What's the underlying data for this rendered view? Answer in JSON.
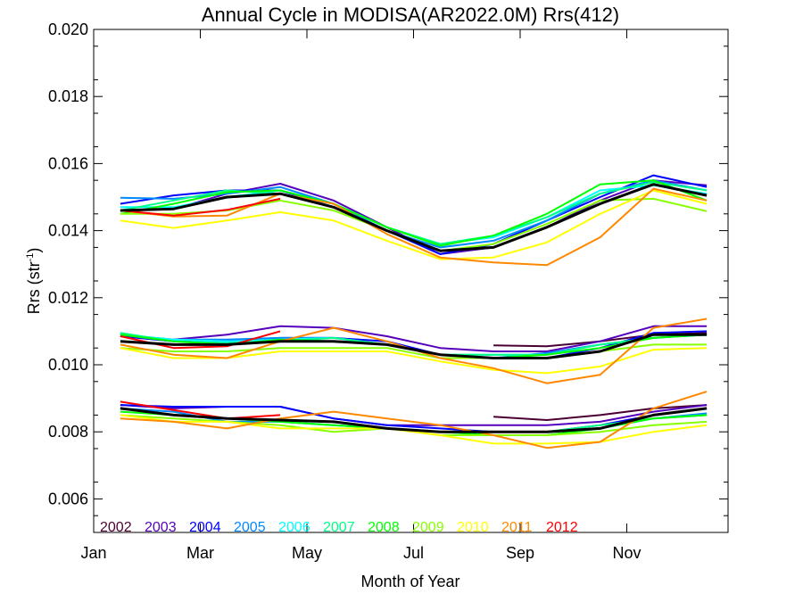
{
  "chart_data": {
    "type": "line",
    "title": "Annual Cycle in MODISA(AR2022.0M) Rrs(412)",
    "xlabel": "Month of Year",
    "ylabel_main": "Rrs (str",
    "ylabel_sup": "-1",
    "ylabel_close": ")",
    "xlim": [
      1,
      12.9
    ],
    "ylim": [
      0.005,
      0.02
    ],
    "x_ticks": [
      {
        "label": "Jan",
        "value": 1
      },
      {
        "label": "Mar",
        "value": 3
      },
      {
        "label": "May",
        "value": 5
      },
      {
        "label": "Jul",
        "value": 7
      },
      {
        "label": "Sep",
        "value": 9
      },
      {
        "label": "Nov",
        "value": 11
      }
    ],
    "y_ticks": [
      {
        "label": "0.006",
        "value": 0.006
      },
      {
        "label": "0.008",
        "value": 0.008
      },
      {
        "label": "0.010",
        "value": 0.01
      },
      {
        "label": "0.012",
        "value": 0.012
      },
      {
        "label": "0.014",
        "value": 0.014
      },
      {
        "label": "0.016",
        "value": 0.016
      },
      {
        "label": "0.018",
        "value": 0.018
      },
      {
        "label": "0.020",
        "value": 0.02
      }
    ],
    "legend_position": "bottom-left",
    "x": [
      1.5,
      2.5,
      3.5,
      4.5,
      5.5,
      6.5,
      7.5,
      8.5,
      9.5,
      10.5,
      11.5,
      12.5
    ],
    "series": [
      {
        "name": "2002",
        "color": "#4b0033",
        "legend": true,
        "groups": [
          [
            null,
            null,
            null,
            null,
            null,
            null,
            null,
            null,
            null,
            null,
            null,
            null
          ],
          [
            null,
            null,
            null,
            null,
            null,
            null,
            null,
            0.01058,
            0.01055,
            0.0107,
            0.0109,
            0.01095
          ],
          [
            null,
            null,
            null,
            null,
            null,
            null,
            null,
            0.00845,
            0.00835,
            0.0085,
            0.0087,
            0.0088
          ]
        ]
      },
      {
        "name": "2003",
        "color": "#5500bb",
        "legend": true,
        "groups": [
          [
            0.0146,
            0.01465,
            0.0151,
            0.0154,
            0.0149,
            0.0141,
            0.0133,
            0.0135,
            0.0141,
            0.0149,
            0.0155,
            0.01535
          ],
          [
            0.01085,
            0.01075,
            0.0109,
            0.01115,
            0.0111,
            0.01085,
            0.0105,
            0.0104,
            0.0104,
            0.0107,
            0.01115,
            0.01115
          ],
          [
            0.0088,
            0.0087,
            0.00875,
            0.00875,
            0.0084,
            0.0082,
            0.0082,
            0.0082,
            0.0082,
            0.0083,
            0.0086,
            0.0088
          ]
        ]
      },
      {
        "name": "2004",
        "color": "#0000ff",
        "legend": true,
        "groups": [
          [
            0.0148,
            0.01505,
            0.0152,
            0.0152,
            0.0147,
            0.014,
            0.0133,
            0.0136,
            0.0143,
            0.015,
            0.01565,
            0.0153
          ],
          [
            0.01085,
            0.0107,
            0.0107,
            0.0108,
            0.0108,
            0.0107,
            0.0103,
            0.0102,
            0.0102,
            0.0105,
            0.01095,
            0.011
          ],
          [
            0.0088,
            0.00875,
            0.00875,
            0.00875,
            0.0084,
            0.0082,
            0.0081,
            0.008,
            0.008,
            0.0082,
            0.0085,
            0.0087
          ]
        ]
      },
      {
        "name": "2005",
        "color": "#0088ff",
        "legend": true,
        "groups": [
          [
            0.01498,
            0.01495,
            0.0151,
            0.0153,
            0.0148,
            0.014,
            0.0135,
            0.0137,
            0.0143,
            0.0151,
            0.0155,
            0.0152
          ],
          [
            0.0109,
            0.01075,
            0.01075,
            0.0108,
            0.0108,
            0.0106,
            0.0103,
            0.0102,
            0.01035,
            0.0106,
            0.0108,
            0.0109
          ],
          [
            0.0087,
            0.0086,
            0.0083,
            0.0083,
            0.0082,
            0.0081,
            0.008,
            0.0079,
            0.0079,
            0.0081,
            0.0084,
            0.00855
          ]
        ]
      },
      {
        "name": "2006",
        "color": "#00ffff",
        "legend": true,
        "groups": [
          [
            0.0147,
            0.0147,
            0.015,
            0.0152,
            0.0148,
            0.0141,
            0.0136,
            0.0138,
            0.0144,
            0.0152,
            0.01535,
            0.0151
          ],
          [
            0.0109,
            0.01075,
            0.0107,
            0.01075,
            0.0108,
            0.0106,
            0.0103,
            0.0103,
            0.0103,
            0.0106,
            0.0108,
            0.0109
          ],
          [
            0.0087,
            0.0085,
            0.0084,
            0.0083,
            0.0082,
            0.0081,
            0.008,
            0.008,
            0.008,
            0.0081,
            0.0084,
            0.0085
          ]
        ]
      },
      {
        "name": "2007",
        "color": "#00ff88",
        "legend": true,
        "groups": [
          [
            0.0146,
            0.0149,
            0.0152,
            0.0151,
            0.0148,
            0.0141,
            0.0136,
            0.01385,
            0.0144,
            0.0151,
            0.01545,
            0.0152
          ],
          [
            0.01095,
            0.0107,
            0.01065,
            0.0107,
            0.0108,
            0.0106,
            0.0103,
            0.0103,
            0.0103,
            0.0106,
            0.0108,
            0.0109
          ],
          [
            0.0087,
            0.0085,
            0.0084,
            0.0083,
            0.0082,
            0.0081,
            0.008,
            0.008,
            0.008,
            0.0082,
            0.0084,
            0.0085
          ]
        ]
      },
      {
        "name": "2008",
        "color": "#00ff00",
        "legend": true,
        "groups": [
          [
            0.0145,
            0.0148,
            0.01515,
            0.0152,
            0.0148,
            0.0141,
            0.01355,
            0.01385,
            0.0145,
            0.01538,
            0.0155,
            0.0149
          ],
          [
            0.0109,
            0.0107,
            0.0106,
            0.01075,
            0.0107,
            0.0106,
            0.0103,
            0.0102,
            0.0103,
            0.0105,
            0.0108,
            0.0109
          ],
          [
            0.0086,
            0.0085,
            0.0084,
            0.0083,
            0.0082,
            0.0081,
            0.008,
            0.0079,
            0.0079,
            0.0081,
            0.0084,
            0.0085
          ]
        ]
      },
      {
        "name": "2009",
        "color": "#88ff00",
        "legend": true,
        "groups": [
          [
            0.0145,
            0.0145,
            0.0146,
            0.0149,
            0.0146,
            0.014,
            0.0134,
            0.0136,
            0.0142,
            0.0149,
            0.01495,
            0.01458
          ],
          [
            0.0105,
            0.0104,
            0.0104,
            0.0105,
            0.0105,
            0.0105,
            0.0102,
            0.0102,
            0.0102,
            0.0104,
            0.0106,
            0.0106
          ],
          [
            0.0085,
            0.0084,
            0.0083,
            0.0082,
            0.008,
            0.0081,
            0.0079,
            0.0079,
            0.0079,
            0.008,
            0.0082,
            0.0083
          ]
        ]
      },
      {
        "name": "2010",
        "color": "#ffff00",
        "legend": true,
        "groups": [
          [
            0.0143,
            0.01408,
            0.0143,
            0.01455,
            0.0143,
            0.0137,
            0.01315,
            0.0132,
            0.01365,
            0.0145,
            0.0152,
            0.0148
          ],
          [
            0.0105,
            0.0102,
            0.0102,
            0.0104,
            0.0104,
            0.0104,
            0.0101,
            0.00985,
            0.00975,
            0.00995,
            0.01045,
            0.0105
          ],
          [
            0.0085,
            0.0083,
            0.0083,
            0.0081,
            0.0081,
            0.0081,
            0.0079,
            0.00765,
            0.00765,
            0.0077,
            0.008,
            0.0082
          ]
        ]
      },
      {
        "name": "2011",
        "color": "#ff8800",
        "legend": true,
        "groups": [
          [
            0.0146,
            0.01442,
            0.01445,
            0.0151,
            0.0148,
            0.0139,
            0.0132,
            0.01305,
            0.01297,
            0.0138,
            0.01525,
            0.0149
          ],
          [
            0.0106,
            0.0103,
            0.0102,
            0.0107,
            0.0111,
            0.0107,
            0.0102,
            0.0099,
            0.00945,
            0.0097,
            0.0111,
            0.01137
          ],
          [
            0.0084,
            0.0083,
            0.0081,
            0.0084,
            0.0086,
            0.0084,
            0.0082,
            0.0079,
            0.00752,
            0.0077,
            0.0087,
            0.0092
          ]
        ]
      },
      {
        "name": "2012",
        "color": "#ff0000",
        "legend": true,
        "groups": [
          [
            0.0146,
            0.01445,
            0.01462,
            0.01495,
            null,
            null,
            null,
            null,
            null,
            null,
            null,
            null
          ],
          [
            0.01085,
            0.0105,
            0.01055,
            0.011,
            null,
            null,
            null,
            null,
            null,
            null,
            null,
            null
          ],
          [
            0.0089,
            0.00865,
            0.0084,
            0.0085,
            null,
            null,
            null,
            null,
            null,
            null,
            null,
            null
          ]
        ]
      },
      {
        "name": "",
        "color": "#000000",
        "legend": false,
        "width": 3,
        "groups": [
          [
            0.0146,
            0.01465,
            0.015,
            0.0151,
            0.0147,
            0.014,
            0.0134,
            0.0135,
            0.0141,
            0.0148,
            0.01538,
            0.01505
          ],
          [
            0.0107,
            0.0106,
            0.0106,
            0.0107,
            0.0107,
            0.0106,
            0.0103,
            0.0102,
            0.0102,
            0.0104,
            0.0109,
            0.0109
          ],
          [
            0.0087,
            0.0085,
            0.0084,
            0.00835,
            0.0083,
            0.0081,
            0.008,
            0.008,
            0.008,
            0.0081,
            0.0085,
            0.0087
          ]
        ]
      }
    ]
  }
}
